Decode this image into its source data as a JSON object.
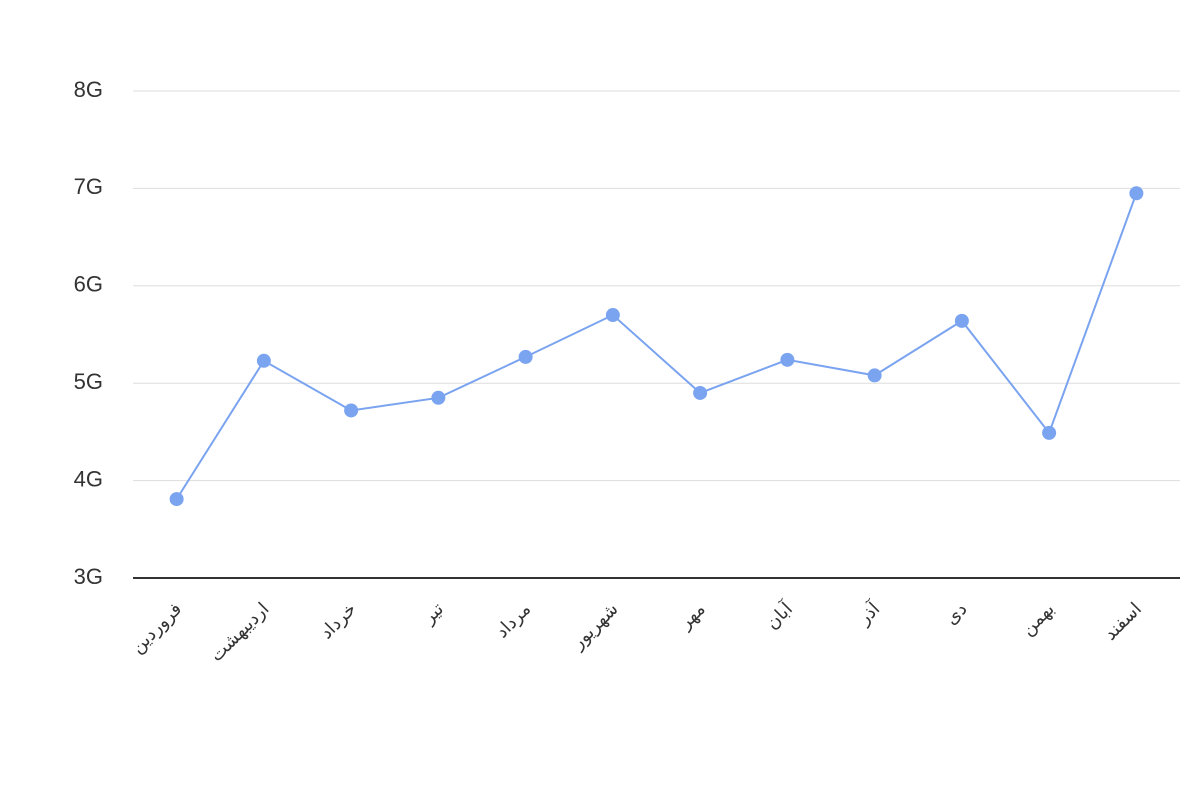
{
  "chart_data": {
    "type": "line",
    "categories": [
      "فروردین",
      "اردیبهشت",
      "خرداد",
      "تیر",
      "مرداد",
      "شهریور",
      "مهر",
      "آبان",
      "آذر",
      "دی",
      "بهمن",
      "اسفند"
    ],
    "series": [
      {
        "color": "#7aa3f0",
        "values": [
          3.81,
          5.23,
          4.72,
          4.85,
          5.27,
          5.7,
          4.9,
          5.24,
          5.08,
          5.64,
          4.49,
          6.95
        ]
      }
    ],
    "ylim": [
      3,
      8
    ],
    "yticks": [
      {
        "value": 3,
        "label": "3G"
      },
      {
        "value": 4,
        "label": "4G"
      },
      {
        "value": 5,
        "label": "5G"
      },
      {
        "value": 6,
        "label": "6G"
      },
      {
        "value": 7,
        "label": "7G"
      },
      {
        "value": 8,
        "label": "8G"
      }
    ],
    "grid": true
  }
}
